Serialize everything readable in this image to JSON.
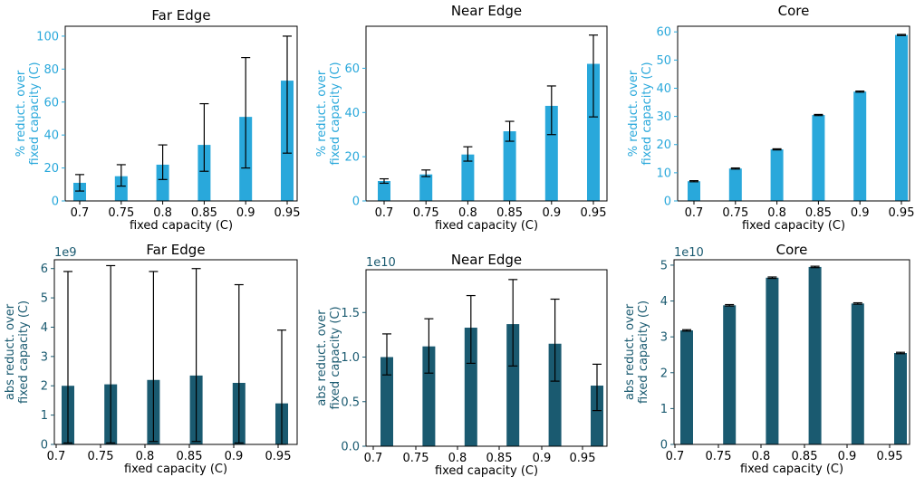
{
  "colors": {
    "top": "#29a8db",
    "bottom": "#1a5a70"
  },
  "chart_data": [
    {
      "type": "bar",
      "title": "Far Edge",
      "xlabel": "fixed capacity (C)",
      "ylabel": [
        "% reduct. over",
        "fixed capacity (C)"
      ],
      "ylim": [
        0,
        106
      ],
      "yticks": [
        0,
        20,
        40,
        60,
        80,
        100
      ],
      "exponent": "",
      "categories": [
        "0.7",
        "0.75",
        "0.8",
        "0.85",
        "0.9",
        "0.95"
      ],
      "values": [
        11,
        15,
        22,
        34,
        51,
        73
      ],
      "err_low": [
        6,
        9,
        13,
        18,
        20,
        29
      ],
      "err_high": [
        16,
        22,
        34,
        59,
        87,
        100
      ]
    },
    {
      "type": "bar",
      "title": "Near Edge",
      "xlabel": "fixed capacity (C)",
      "ylabel": [
        "% reduct. over",
        "fixed capacity (C)"
      ],
      "ylim": [
        0,
        79
      ],
      "yticks": [
        0,
        20,
        40,
        60
      ],
      "exponent": "",
      "categories": [
        "0.7",
        "0.75",
        "0.8",
        "0.85",
        "0.9",
        "0.95"
      ],
      "values": [
        9,
        12,
        21,
        31.5,
        43,
        62
      ],
      "err_low": [
        8,
        11,
        18,
        27,
        30,
        38
      ],
      "err_high": [
        10,
        14,
        24.5,
        36,
        52,
        75
      ]
    },
    {
      "type": "bar",
      "title": "Core",
      "xlabel": "fixed capacity (C)",
      "ylabel": [
        "% reduct. over",
        "fixed capacity (C)"
      ],
      "ylim": [
        0,
        62
      ],
      "yticks": [
        0,
        10,
        20,
        30,
        40,
        50,
        60
      ],
      "exponent": "",
      "categories": [
        "0.7",
        "0.75",
        "0.8",
        "0.85",
        "0.9",
        "0.95"
      ],
      "values": [
        7,
        11.5,
        18.3,
        30.5,
        38.8,
        58.9
      ],
      "err_low": [
        6.8,
        11.3,
        18.1,
        30.3,
        38.6,
        58.7
      ],
      "err_high": [
        7.2,
        11.7,
        18.5,
        30.7,
        39,
        59.1
      ]
    },
    {
      "type": "bar",
      "title": "Far Edge",
      "xlabel": "fixed capacity (C)",
      "ylabel": [
        "abs reduct. over",
        "fixed capacity (C)"
      ],
      "ylim": [
        0,
        6.3
      ],
      "yticks": [
        0,
        1,
        2,
        3,
        4,
        5,
        6
      ],
      "exponent": "1e9",
      "categories": [
        "0.7",
        "0.75",
        "0.8",
        "0.85",
        "0.9",
        "0.95"
      ],
      "values": [
        2.0,
        2.05,
        2.2,
        2.35,
        2.1,
        1.4
      ],
      "err_low": [
        0.05,
        0.05,
        0.1,
        0.1,
        0.05,
        0.0
      ],
      "err_high": [
        5.9,
        6.1,
        5.9,
        6.0,
        5.45,
        3.9
      ]
    },
    {
      "type": "bar",
      "title": "Near Edge",
      "xlabel": "fixed capacity (C)",
      "ylabel": [
        "abs reduct. over",
        "fixed capacity (C)"
      ],
      "ylim": [
        0,
        1.98
      ],
      "yticks": [
        0.0,
        0.5,
        1.0,
        1.5
      ],
      "yticklabels": [
        "0.0",
        "0.5",
        "1.0",
        "1.5"
      ],
      "exponent": "1e10",
      "categories": [
        "0.7",
        "0.75",
        "0.8",
        "0.85",
        "0.9",
        "0.95"
      ],
      "values": [
        1.0,
        1.12,
        1.33,
        1.37,
        1.15,
        0.68
      ],
      "err_low": [
        0.8,
        0.82,
        0.93,
        0.9,
        0.73,
        0.4
      ],
      "err_high": [
        1.26,
        1.43,
        1.69,
        1.87,
        1.65,
        0.92
      ]
    },
    {
      "type": "bar",
      "title": "Core",
      "xlabel": "fixed capacity (C)",
      "ylabel": [
        "abs reduct. over",
        "fixed capacity (C)"
      ],
      "ylim": [
        0,
        5.15
      ],
      "yticks": [
        0,
        1,
        2,
        3,
        4,
        5
      ],
      "exponent": "1e10",
      "categories": [
        "0.7",
        "0.75",
        "0.8",
        "0.85",
        "0.9",
        "0.95"
      ],
      "values": [
        3.18,
        3.88,
        4.65,
        4.95,
        3.93,
        2.55
      ],
      "err_low": [
        3.16,
        3.86,
        4.63,
        4.93,
        3.91,
        2.53
      ],
      "err_high": [
        3.2,
        3.9,
        4.67,
        4.97,
        3.95,
        2.57
      ]
    }
  ]
}
